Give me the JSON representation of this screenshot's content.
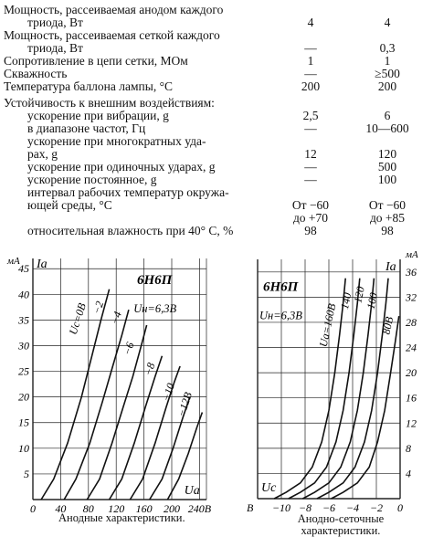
{
  "table": [
    {
      "id": "r1a",
      "label": "Мощность, рассеиваемая анодом каждого",
      "v1": "",
      "v2": ""
    },
    {
      "id": "r1b",
      "label": "триода, Вт",
      "v1": "4",
      "v2": "4",
      "indent": true
    },
    {
      "id": "r2a",
      "label": "Мощность, рассеиваемая сеткой каждого",
      "v1": "",
      "v2": ""
    },
    {
      "id": "r2b",
      "label": "триода, Вт",
      "v1": "—",
      "v2": "0,3",
      "indent": true
    },
    {
      "id": "r3",
      "label": "Сопротивление в цепи сетки, МОм",
      "v1": "1",
      "v2": "1"
    },
    {
      "id": "r4",
      "label": "Скважность",
      "v1": "—",
      "v2": "≥500"
    },
    {
      "id": "r5",
      "label": "Температура баллона лампы, °С",
      "v1": "200",
      "v2": "200"
    },
    {
      "id": "r6",
      "label": "Устойчивость к внешним воздействиям:",
      "v1": "",
      "v2": ""
    },
    {
      "id": "r7",
      "label": "ускорение при вибрации, g",
      "v1": "2,5",
      "v2": "6",
      "indent": true
    },
    {
      "id": "r8",
      "label": "в диапазоне частот, Гц",
      "v1": "—",
      "v2": "10—600",
      "indent": true
    },
    {
      "id": "r9a",
      "label": "ускорение при многократных уда-",
      "v1": "",
      "v2": "",
      "indent": true
    },
    {
      "id": "r9b",
      "label": "рах, g",
      "v1": "12",
      "v2": "120",
      "indent": true
    },
    {
      "id": "r10",
      "label": "ускорение при одиночных ударах, g",
      "v1": "—",
      "v2": "500",
      "indent": true
    },
    {
      "id": "r11",
      "label": "ускорение постоянное, g",
      "v1": "—",
      "v2": "100",
      "indent": true
    },
    {
      "id": "r12a",
      "label": "интервал рабочих температур окружа-",
      "v1": "",
      "v2": "",
      "indent": true
    },
    {
      "id": "r12b",
      "label": "ющей среды, °С",
      "v1": "От −60",
      "v2": "От −60",
      "indent": true
    },
    {
      "id": "r12c",
      "label": "",
      "v1": "до +70",
      "v2": "до +85",
      "indent": true
    },
    {
      "id": "r13",
      "label": "относительная влажность при 40° С, %",
      "v1": "98",
      "v2": "98",
      "indent": true
    }
  ],
  "chart_data": [
    {
      "type": "line",
      "title": "6Н6П",
      "annotation": "Uн=6,3В",
      "ylabel_unit": "мА",
      "ylabel": "Iа",
      "xlabel": "Uа",
      "caption": "Анодные характеристики.",
      "xticks": [
        "0",
        "40",
        "80",
        "120",
        "160",
        "200",
        "240"
      ],
      "xtick_last_suffix": "В",
      "yticks": [
        "5",
        "10",
        "15",
        "20",
        "25",
        "30",
        "35",
        "40",
        "45"
      ],
      "xlim": [
        0,
        250
      ],
      "ylim": [
        0,
        47
      ],
      "series": [
        {
          "name": "Uс=0В",
          "points": [
            [
              12,
              0
            ],
            [
              30,
              4
            ],
            [
              50,
              11
            ],
            [
              70,
              20
            ],
            [
              85,
              28
            ],
            [
              98,
              35
            ],
            [
              110,
              41
            ]
          ]
        },
        {
          "name": "−2",
          "points": [
            [
              45,
              0
            ],
            [
              62,
              4
            ],
            [
              82,
              11
            ],
            [
              100,
              19
            ],
            [
              115,
              26
            ],
            [
              128,
              32
            ],
            [
              138,
              37
            ]
          ]
        },
        {
          "name": "−4",
          "points": [
            [
              78,
              0
            ],
            [
              96,
              4
            ],
            [
              114,
              11
            ],
            [
              130,
              18
            ],
            [
              144,
              24
            ],
            [
              156,
              30
            ],
            [
              164,
              34
            ]
          ]
        },
        {
          "name": "−6",
          "points": [
            [
              110,
              0
            ],
            [
              128,
              4
            ],
            [
              146,
              11
            ],
            [
              162,
              18
            ],
            [
              176,
              24
            ],
            [
              186,
              28
            ]
          ]
        },
        {
          "name": "−8",
          "points": [
            [
              140,
              0
            ],
            [
              158,
              4
            ],
            [
              176,
              11
            ],
            [
              192,
              18
            ],
            [
              204,
              23
            ],
            [
              212,
              26
            ]
          ]
        },
        {
          "name": "−10",
          "points": [
            [
              168,
              0
            ],
            [
              186,
              4
            ],
            [
              202,
              10
            ],
            [
              216,
              16
            ],
            [
              226,
              20
            ]
          ]
        },
        {
          "name": "−12В",
          "points": [
            [
              194,
              0
            ],
            [
              210,
              4
            ],
            [
              224,
              9
            ],
            [
              236,
              14
            ],
            [
              244,
              17
            ]
          ]
        }
      ]
    },
    {
      "type": "line",
      "title": "6Н6П",
      "annotation": "Uн=6,3В",
      "ylabel_unit": "мА",
      "ylabel": "Iа",
      "xlabel": "Uс",
      "caption": "Анодно-сеточные характеристики.",
      "xticks": [
        "−10",
        "−8",
        "−6",
        "−4",
        "−2",
        "0"
      ],
      "xtick_first_prefix": "В",
      "yticks": [
        "4",
        "8",
        "12",
        "16",
        "20",
        "24",
        "28",
        "32",
        "36"
      ],
      "xlim": [
        -12,
        0
      ],
      "ylim": [
        0,
        38
      ],
      "series": [
        {
          "name": "Uа=160В",
          "points": [
            [
              -10.6,
              0
            ],
            [
              -9.6,
              1
            ],
            [
              -8.4,
              2.5
            ],
            [
              -7.4,
              5
            ],
            [
              -6.6,
              9
            ],
            [
              -6,
              14
            ],
            [
              -5.5,
              20
            ],
            [
              -5.1,
              26
            ],
            [
              -4.8,
              31
            ],
            [
              -4.6,
              35
            ]
          ]
        },
        {
          "name": "140",
          "points": [
            [
              -9.4,
              0
            ],
            [
              -8.4,
              1
            ],
            [
              -7.2,
              2.5
            ],
            [
              -6.2,
              5
            ],
            [
              -5.4,
              9
            ],
            [
              -4.8,
              14
            ],
            [
              -4.3,
              20
            ],
            [
              -3.9,
              26
            ],
            [
              -3.6,
              31
            ],
            [
              -3.4,
              35
            ]
          ]
        },
        {
          "name": "120",
          "points": [
            [
              -8.2,
              0
            ],
            [
              -7.2,
              1
            ],
            [
              -6,
              2.5
            ],
            [
              -5,
              5
            ],
            [
              -4.2,
              9
            ],
            [
              -3.6,
              14
            ],
            [
              -3.1,
              20
            ],
            [
              -2.7,
              26
            ],
            [
              -2.4,
              31
            ],
            [
              -2.2,
              35
            ]
          ]
        },
        {
          "name": "100",
          "points": [
            [
              -7,
              0
            ],
            [
              -6,
              1
            ],
            [
              -4.8,
              2.5
            ],
            [
              -3.8,
              5
            ],
            [
              -3,
              9
            ],
            [
              -2.4,
              14
            ],
            [
              -1.9,
              20
            ],
            [
              -1.5,
              26
            ],
            [
              -1.2,
              31
            ],
            [
              -1,
              35
            ]
          ]
        },
        {
          "name": "80В",
          "points": [
            [
              -5.8,
              0
            ],
            [
              -4.8,
              1
            ],
            [
              -3.6,
              2.5
            ],
            [
              -2.6,
              5
            ],
            [
              -1.9,
              9
            ],
            [
              -1.3,
              14
            ],
            [
              -0.8,
              20
            ],
            [
              -0.4,
              25
            ],
            [
              -0.1,
              29
            ]
          ]
        }
      ]
    }
  ]
}
